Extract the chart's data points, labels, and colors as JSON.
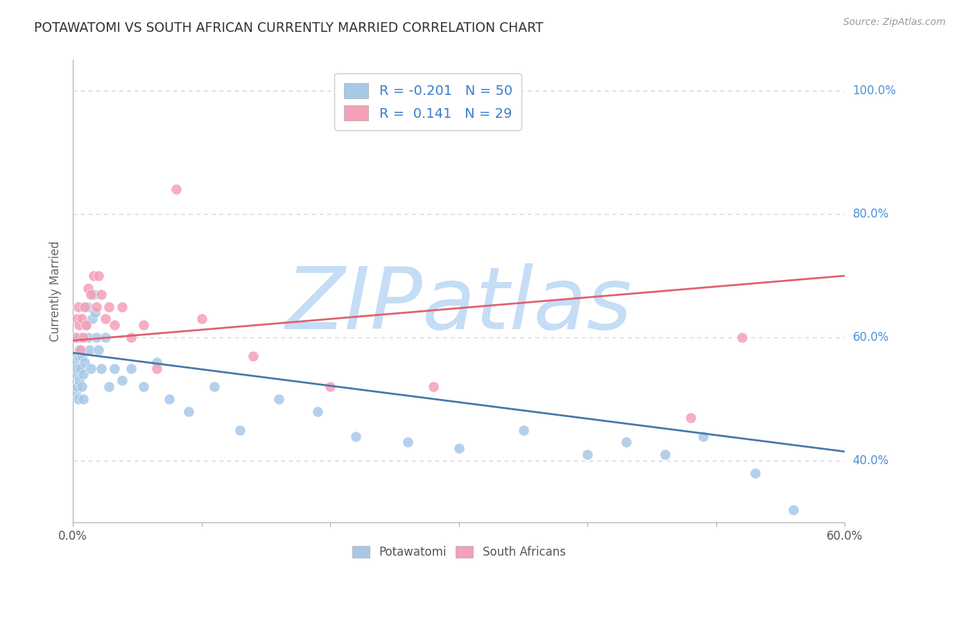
{
  "title": "POTAWATOMI VS SOUTH AFRICAN CURRENTLY MARRIED CORRELATION CHART",
  "source": "Source: ZipAtlas.com",
  "ylabel": "Currently Married",
  "ytick_labels": [
    "40.0%",
    "60.0%",
    "80.0%",
    "100.0%"
  ],
  "ytick_values": [
    0.4,
    0.6,
    0.8,
    1.0
  ],
  "xlim": [
    0.0,
    0.6
  ],
  "ylim": [
    0.3,
    1.05
  ],
  "legend_text1": "R = -0.201   N = 50",
  "legend_text2": "R =  0.141   N = 29",
  "color_potawatomi": "#a8c8e8",
  "color_south_african": "#f4a0b8",
  "color_line_potawatomi": "#4878a8",
  "color_line_south_african": "#e06070",
  "watermark": "ZIPatlas",
  "watermark_color": "#c5ddf5",
  "background_color": "#ffffff",
  "grid_color": "#cccccc",
  "potawatomi_x": [
    0.001,
    0.002,
    0.002,
    0.003,
    0.003,
    0.004,
    0.004,
    0.005,
    0.005,
    0.006,
    0.006,
    0.007,
    0.007,
    0.008,
    0.008,
    0.009,
    0.01,
    0.011,
    0.012,
    0.013,
    0.014,
    0.015,
    0.016,
    0.017,
    0.018,
    0.02,
    0.022,
    0.025,
    0.028,
    0.032,
    0.038,
    0.045,
    0.055,
    0.065,
    0.075,
    0.09,
    0.11,
    0.13,
    0.16,
    0.19,
    0.22,
    0.26,
    0.3,
    0.35,
    0.4,
    0.43,
    0.46,
    0.49,
    0.53,
    0.56
  ],
  "potawatomi_y": [
    0.56,
    0.54,
    0.51,
    0.55,
    0.52,
    0.57,
    0.5,
    0.58,
    0.53,
    0.6,
    0.55,
    0.52,
    0.57,
    0.54,
    0.5,
    0.56,
    0.62,
    0.65,
    0.6,
    0.58,
    0.55,
    0.63,
    0.67,
    0.64,
    0.6,
    0.58,
    0.55,
    0.6,
    0.52,
    0.55,
    0.53,
    0.55,
    0.52,
    0.56,
    0.5,
    0.48,
    0.52,
    0.45,
    0.5,
    0.48,
    0.44,
    0.43,
    0.42,
    0.45,
    0.41,
    0.43,
    0.41,
    0.44,
    0.38,
    0.32
  ],
  "south_african_x": [
    0.002,
    0.003,
    0.004,
    0.005,
    0.006,
    0.007,
    0.008,
    0.009,
    0.01,
    0.012,
    0.014,
    0.016,
    0.018,
    0.02,
    0.022,
    0.025,
    0.028,
    0.032,
    0.038,
    0.045,
    0.055,
    0.065,
    0.08,
    0.1,
    0.14,
    0.2,
    0.28,
    0.48,
    0.52
  ],
  "south_african_y": [
    0.6,
    0.63,
    0.65,
    0.62,
    0.58,
    0.63,
    0.6,
    0.65,
    0.62,
    0.68,
    0.67,
    0.7,
    0.65,
    0.7,
    0.67,
    0.63,
    0.65,
    0.62,
    0.65,
    0.6,
    0.62,
    0.55,
    0.84,
    0.63,
    0.57,
    0.52,
    0.52,
    0.47,
    0.6
  ],
  "trendline_pot_x0": 0.0,
  "trendline_pot_x1": 0.6,
  "trendline_pot_y0": 0.575,
  "trendline_pot_y1": 0.415,
  "trendline_sa_x0": 0.0,
  "trendline_sa_x1": 0.6,
  "trendline_sa_y0": 0.595,
  "trendline_sa_y1": 0.7
}
